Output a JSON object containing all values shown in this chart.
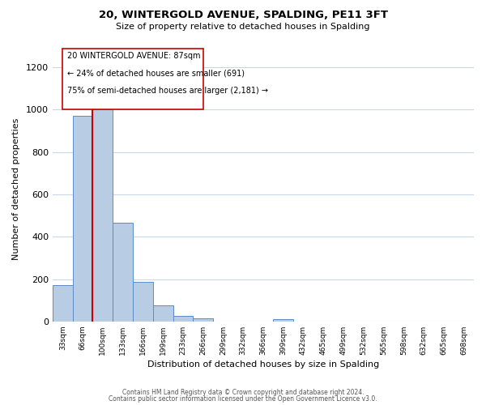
{
  "title": "20, WINTERGOLD AVENUE, SPALDING, PE11 3FT",
  "subtitle": "Size of property relative to detached houses in Spalding",
  "xlabel": "Distribution of detached houses by size in Spalding",
  "ylabel": "Number of detached properties",
  "footer_line1": "Contains HM Land Registry data © Crown copyright and database right 2024.",
  "footer_line2": "Contains public sector information licensed under the Open Government Licence v3.0.",
  "bin_labels": [
    "33sqm",
    "66sqm",
    "100sqm",
    "133sqm",
    "166sqm",
    "199sqm",
    "233sqm",
    "266sqm",
    "299sqm",
    "332sqm",
    "366sqm",
    "399sqm",
    "432sqm",
    "465sqm",
    "499sqm",
    "532sqm",
    "565sqm",
    "598sqm",
    "632sqm",
    "665sqm",
    "698sqm"
  ],
  "bar_values": [
    170,
    970,
    1000,
    465,
    185,
    75,
    25,
    15,
    0,
    0,
    0,
    10,
    0,
    0,
    0,
    0,
    0,
    0,
    0,
    0,
    0
  ],
  "bar_color": "#b8cce4",
  "bar_edge_color": "#5b8cc8",
  "property_line_color": "#cc0000",
  "annotation_box_text": [
    "20 WINTERGOLD AVENUE: 87sqm",
    "← 24% of detached houses are smaller (691)",
    "75% of semi-detached houses are larger (2,181) →"
  ],
  "ylim": [
    0,
    1250
  ],
  "yticks": [
    0,
    200,
    400,
    600,
    800,
    1000,
    1200
  ],
  "bg_color": "#ffffff",
  "grid_color": "#c8d8e8"
}
